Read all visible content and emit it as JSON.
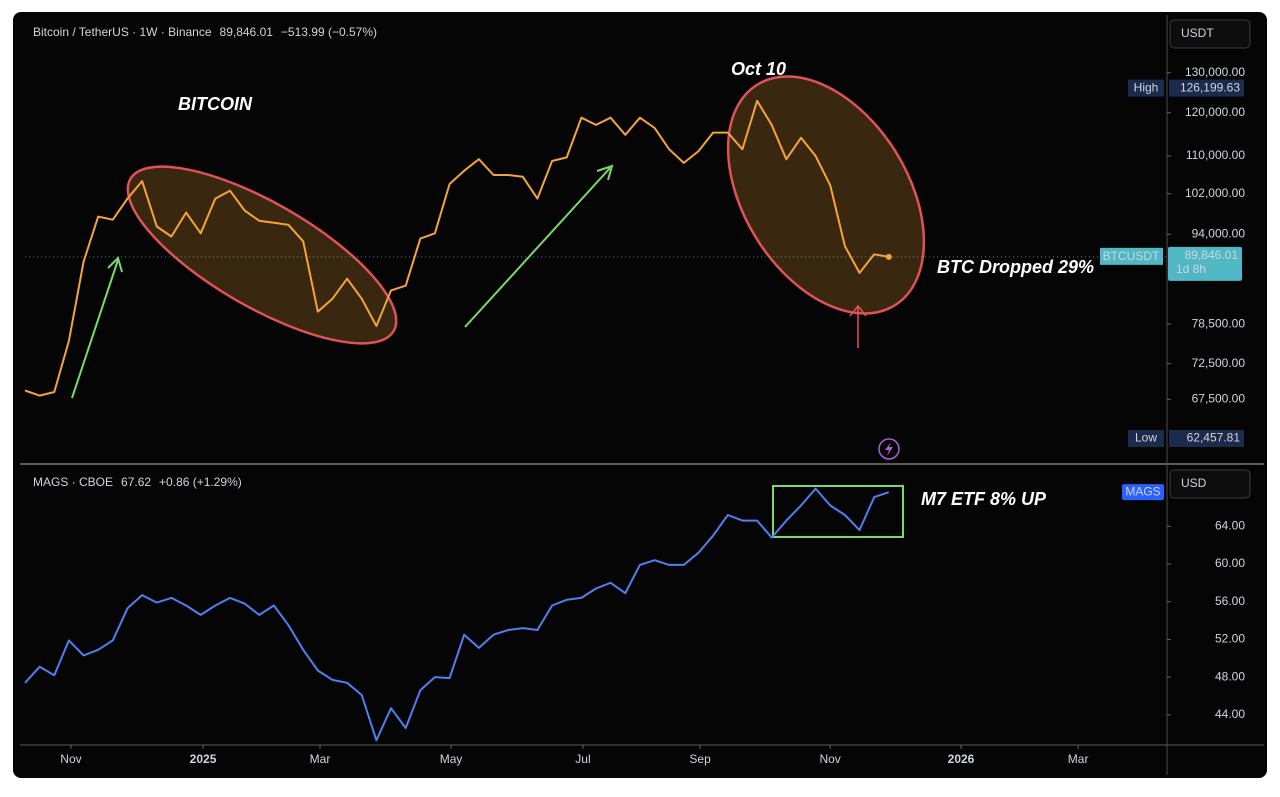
{
  "chart_data": [
    {
      "type": "line",
      "title": "Bitcoin / TetherUS · 1W · Binance",
      "change": "−513.99 (−0.57%)",
      "currency": "USDT",
      "color": "#f5a43a",
      "log_scale": true,
      "grid": false,
      "x": [
        0,
        1,
        2,
        3,
        4,
        5,
        6,
        7,
        8,
        9,
        10,
        11,
        12,
        13,
        14,
        15,
        16,
        17,
        18,
        19,
        20,
        21,
        22,
        23,
        24,
        25,
        26,
        27,
        28,
        29,
        30,
        31,
        32,
        33,
        34,
        35,
        36,
        37,
        38,
        39,
        40,
        41,
        42,
        43,
        44,
        45,
        46,
        47,
        48,
        49,
        50,
        51,
        52,
        53,
        54,
        55,
        56,
        57,
        58,
        59
      ],
      "values": [
        68700,
        68000,
        68500,
        75900,
        89000,
        97400,
        96800,
        101000,
        104600,
        95500,
        93600,
        98200,
        94200,
        101000,
        102600,
        98600,
        96600,
        96200,
        95800,
        92700,
        80500,
        82600,
        86000,
        82600,
        78200,
        84000,
        84800,
        93200,
        94200,
        104000,
        106800,
        109300,
        105900,
        105900,
        105500,
        101000,
        108900,
        109700,
        118800,
        117100,
        118800,
        114800,
        118800,
        116400,
        111500,
        108500,
        111100,
        115300,
        115300,
        111500,
        122900,
        117100,
        109300,
        114100,
        110000,
        103700,
        91800,
        87000,
        90300,
        89846.01
      ],
      "xlim": [
        0,
        78
      ],
      "ylim": [
        59400,
        146000
      ],
      "yticks": [
        {
          "value": 130000,
          "label": "130,000.00"
        },
        {
          "value": 120000,
          "label": "120,000.00"
        },
        {
          "value": 110000,
          "label": "110,000.00"
        },
        {
          "value": 102000,
          "label": "102,000.00"
        },
        {
          "value": 94000,
          "label": "94,000.00"
        },
        {
          "value": 78500,
          "label": "78,500.00"
        },
        {
          "value": 72500,
          "label": "72,500.00"
        },
        {
          "value": 67500,
          "label": "67,500.00"
        }
      ],
      "high": {
        "name": "High",
        "value": 126199.63,
        "label": "126,199.63"
      },
      "low": {
        "name": "Low",
        "value": 62457.81,
        "label": "62,457.81"
      },
      "last_price": {
        "name": "BTCUSDT",
        "value": 89846.01,
        "label": "89,846.01",
        "countdown": "1d 8h"
      },
      "annotations": [
        "BITCOIN",
        "Oct 10",
        "BTC Dropped 29%"
      ]
    },
    {
      "type": "line",
      "title": "MAGS · CBOE",
      "change": "+0.86 (+1.29%)",
      "currency": "USD",
      "color": "#4f7ff0",
      "log_scale": false,
      "grid": false,
      "x": [
        0,
        1,
        2,
        3,
        4,
        5,
        6,
        7,
        8,
        9,
        10,
        11,
        12,
        13,
        14,
        15,
        16,
        17,
        18,
        19,
        20,
        21,
        22,
        23,
        24,
        25,
        26,
        27,
        28,
        29,
        30,
        31,
        32,
        33,
        34,
        35,
        36,
        37,
        38,
        39,
        40,
        41,
        42,
        43,
        44,
        45,
        46,
        47,
        48,
        49,
        50,
        51,
        52,
        53,
        54,
        55,
        56,
        57,
        58,
        59
      ],
      "values": [
        47.4,
        49.1,
        48.2,
        51.9,
        50.3,
        50.9,
        51.9,
        55.3,
        56.7,
        55.9,
        56.4,
        55.6,
        54.6,
        55.6,
        56.4,
        55.8,
        54.6,
        55.6,
        53.5,
        50.9,
        48.7,
        47.7,
        47.4,
        46.1,
        41.3,
        44.7,
        42.6,
        46.6,
        48.0,
        47.9,
        52.5,
        51.1,
        52.5,
        53.0,
        53.2,
        53.0,
        55.6,
        56.2,
        56.4,
        57.4,
        58.0,
        56.9,
        59.9,
        60.4,
        59.9,
        59.9,
        61.2,
        63.0,
        65.2,
        64.6,
        64.6,
        62.8,
        64.6,
        66.2,
        68.0,
        66.2,
        65.2,
        63.6,
        67.1,
        67.62
      ],
      "xlim": [
        0,
        78
      ],
      "ylim": [
        40.8,
        70.5
      ],
      "yticks": [
        {
          "value": 64,
          "label": "64.00"
        },
        {
          "value": 60,
          "label": "60.00"
        },
        {
          "value": 56,
          "label": "56.00"
        },
        {
          "value": 52,
          "label": "52.00"
        },
        {
          "value": 48,
          "label": "48.00"
        },
        {
          "value": 44,
          "label": "44.00"
        }
      ],
      "xticks": [
        {
          "value": 3.14,
          "label": "Nov"
        },
        {
          "value": 12.16,
          "label": "2025"
        },
        {
          "value": 20.15,
          "label": "Mar"
        },
        {
          "value": 29.1,
          "label": "May"
        },
        {
          "value": 38.11,
          "label": "Jul"
        },
        {
          "value": 46.11,
          "label": "Sep"
        },
        {
          "value": 54.99,
          "label": "Nov"
        },
        {
          "value": 63.93,
          "label": "2026"
        },
        {
          "value": 71.93,
          "label": "Mar"
        }
      ],
      "last_price": {
        "name": "MAGS",
        "value": 67.62
      },
      "annotations": [
        "M7 ETF 8% UP"
      ]
    }
  ]
}
